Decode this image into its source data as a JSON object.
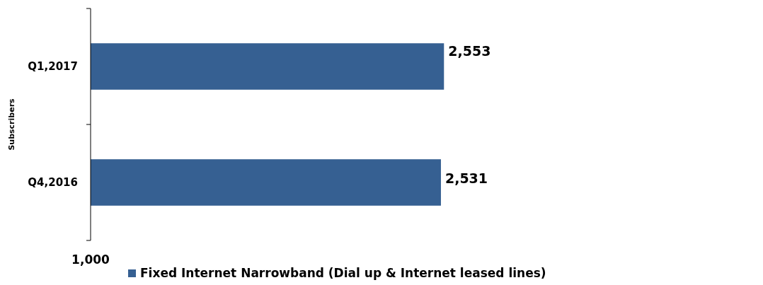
{
  "chart_data": {
    "type": "bar",
    "orientation": "horizontal",
    "ylabel": "Subscribers",
    "categories": [
      "Q1,2017",
      "Q4,2016"
    ],
    "series": [
      {
        "name": "Fixed Internet Narrowband (Dial up & Internet leased lines)",
        "color": "#366092",
        "values": [
          2553,
          2531
        ],
        "value_labels": [
          "2,553",
          "2,531"
        ]
      }
    ],
    "annotations": [
      "1,000"
    ],
    "legend": "bottom"
  }
}
